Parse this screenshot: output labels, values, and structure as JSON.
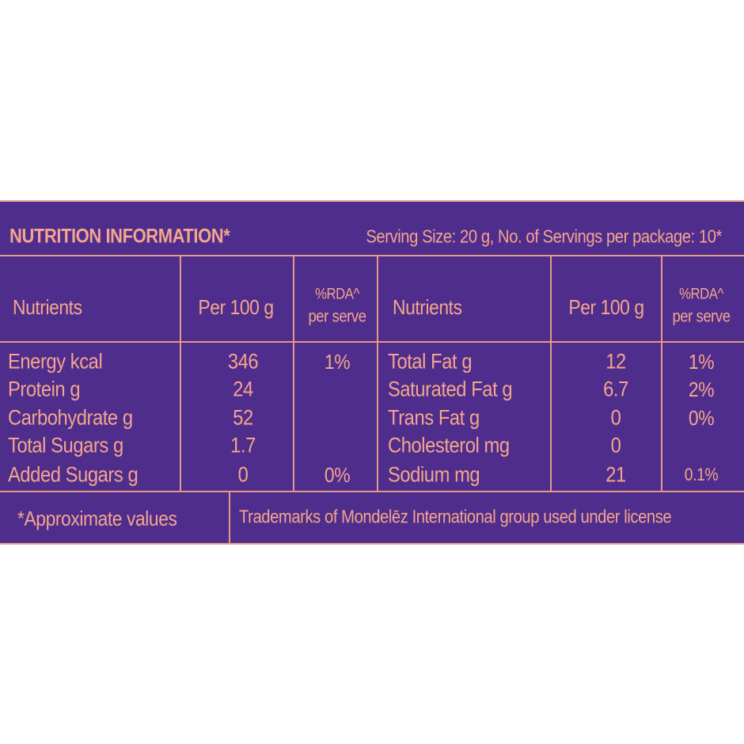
{
  "header": {
    "title": "NUTRITION INFORMATION*",
    "serving": "Serving Size: 20 g, No. of Servings per package: 10*"
  },
  "table": {
    "left": {
      "columns": [
        "Nutrients",
        "Per 100 g",
        [
          "%RDA^",
          "per serve"
        ]
      ],
      "rows": [
        {
          "nutrient": "Energy kcal",
          "per100g": "346",
          "rda": "1%"
        },
        {
          "nutrient": "Protein g",
          "per100g": "24"
        },
        {
          "nutrient": "Carbohydrate g",
          "per100g": "52"
        },
        {
          "nutrient": "Total Sugars g",
          "per100g": "1.7"
        },
        {
          "nutrient": "Added Sugars g",
          "per100g": "0",
          "rda": "0%"
        }
      ]
    },
    "right": {
      "columns": [
        "Nutrients",
        "Per 100 g",
        [
          "%RDA^",
          "per serve"
        ]
      ],
      "rows": [
        {
          "nutrient": "Total Fat g",
          "per100g": "12",
          "rda": "1%"
        },
        {
          "nutrient": "Saturated Fat g",
          "per100g": "6.7",
          "rda": "2%"
        },
        {
          "nutrient": "Trans Fat g",
          "per100g": "0",
          "rda": "0%"
        },
        {
          "nutrient": "Cholesterol mg",
          "per100g": "0"
        },
        {
          "nutrient": "Sodium mg",
          "per100g": "21",
          "rda": "0.1%"
        }
      ]
    }
  },
  "footer": {
    "note": "*Approximate values",
    "trademark": "Trademarks of Mondelēz International group used under license"
  }
}
